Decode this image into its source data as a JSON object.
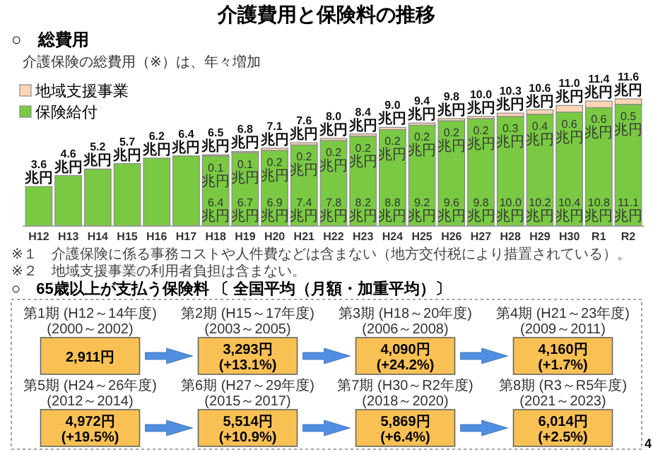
{
  "chart_data": [
    {
      "type": "bar",
      "title": "介護費用と保険料の推移",
      "subtitle": "○　総費用",
      "annotations": [
        "介護保険の総費用（※）は、年々増加",
        "※１　介護保険に係る事務コストや人件費などは含まない（地方交付税により措置されている）。",
        "※２　地域支援事業の利用者負担は含まない。"
      ],
      "categories": [
        "H12",
        "H13",
        "H14",
        "H15",
        "H16",
        "H17",
        "H18",
        "H19",
        "H20",
        "H21",
        "H22",
        "H23",
        "H24",
        "H25",
        "H26",
        "H27",
        "H28",
        "H29",
        "H30",
        "R1",
        "R2"
      ],
      "stacked": true,
      "legend": "top left",
      "series": [
        {
          "name": "保険給付",
          "color": "#7ac943",
          "values": [
            3.6,
            4.6,
            5.2,
            5.7,
            6.2,
            6.4,
            6.4,
            6.7,
            6.9,
            7.4,
            7.8,
            8.2,
            8.8,
            9.2,
            9.6,
            9.8,
            10.0,
            10.2,
            10.4,
            10.8,
            11.1
          ],
          "value_labels": [
            null,
            null,
            null,
            null,
            null,
            null,
            "6.4 兆円",
            "6.7 兆円",
            "6.9 兆円",
            "7.4 兆円",
            "7.8 兆円",
            "8.2 兆円",
            "8.8 兆円",
            "9.2 兆円",
            "9.6 兆円",
            "9.8 兆円",
            "10.0 兆円",
            "10.2 兆円",
            "10.4 兆円",
            "10.8 兆円",
            "11.1 兆円"
          ]
        },
        {
          "name": "地域支援事業",
          "color": "#fcd5b4",
          "values": [
            null,
            null,
            null,
            null,
            null,
            null,
            0.1,
            0.1,
            0.2,
            0.2,
            0.2,
            0.2,
            0.2,
            0.2,
            0.2,
            0.2,
            0.3,
            0.4,
            0.6,
            0.6,
            0.5
          ],
          "value_labels": [
            null,
            null,
            null,
            null,
            null,
            null,
            "0.1 兆円",
            "0.1 兆円",
            "0.2 兆円",
            "0.2 兆円",
            "0.2 兆円",
            "0.2 兆円",
            "0.2 兆円",
            "0.2 兆円",
            "0.2 兆円",
            "0.2 兆円",
            "0.3 兆円",
            "0.4 兆円",
            "0.6 兆円",
            "0.6 兆円",
            "0.5 兆円"
          ]
        }
      ],
      "totals": [
        "3.6兆円",
        "4.6兆円",
        "5.2兆円",
        "5.7兆円",
        "6.2兆円",
        "6.4兆円",
        "6.5兆円",
        "6.8兆円",
        "7.1兆円",
        "7.6兆円",
        "8.0兆円",
        "8.4兆円",
        "9.0兆円",
        "9.4兆円",
        "9.8兆円",
        "10.0兆円",
        "10.3兆円",
        "10.6兆円",
        "11.0兆円",
        "11.4兆円",
        "11.6兆円"
      ]
    },
    {
      "type": "other",
      "title": "○　65歳以上が支払う保険料 〔 全国平均（月額・加重平均）〕",
      "categories": [
        "第1期\n(H12～14年度)\n(2000～2002)",
        "第2期\n(H15～17年度)\n(2003～2005)",
        "第3期\n(H18～20年度)\n(2006～2008)",
        "第4期\n(H21～23年度)\n(2009～2011)",
        "第5期\n(H24～26年度)\n(2012～2014)",
        "第6期\n(H27～29年度)\n(2015～2017)",
        "第7期\n(H30～R2年度)\n(2018～2020)",
        "第8期\n(R3～R5年度)\n(2021～2023)"
      ],
      "values": [
        2911,
        3293,
        4090,
        4160,
        4972,
        5514,
        5869,
        6014
      ],
      "value_labels": [
        "2,911円",
        "3,293円\n(+13.1%)",
        "4,090円\n(+24.2%)",
        "4,160円\n(+1.7%)",
        "4,972円\n(+19.5%)",
        "5,514円\n(+10.9%)",
        "5,869円\n(+6.4%)",
        "6,014円\n(+2.5%)"
      ],
      "color": "#f9c154",
      "annotations": [
        "4"
      ]
    }
  ]
}
